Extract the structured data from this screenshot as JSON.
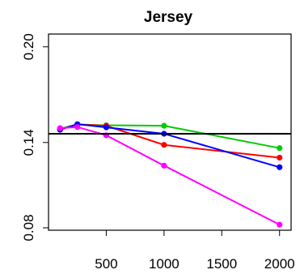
{
  "chart_data": {
    "type": "line",
    "title": "Jersey",
    "xlabel": "",
    "ylabel": "",
    "x": [
      100,
      250,
      500,
      1000,
      2000
    ],
    "xlim": [
      0,
      2100
    ],
    "ylim": [
      0.085,
      0.208
    ],
    "xticks": [
      500,
      1000,
      1500,
      2000
    ],
    "xtick_labels": [
      "500",
      "1000",
      "1500",
      "2000"
    ],
    "yticks": [
      0.08,
      0.14,
      0.2
    ],
    "ytick_labels": [
      "0.08",
      "0.14",
      "0.20"
    ],
    "grid": false,
    "legend": "none",
    "reference_line": {
      "y": 0.1455,
      "color": "#000000"
    },
    "series": [
      {
        "color": "#00CC00",
        "values": [
          0.1487,
          0.1513,
          0.1508,
          0.1505,
          0.1365
        ]
      },
      {
        "color": "#FF0000",
        "values": [
          0.1482,
          0.1513,
          0.1505,
          0.1385,
          0.1305
        ]
      },
      {
        "color": "#0000FF",
        "values": [
          0.148,
          0.1515,
          0.1495,
          0.1455,
          0.1245
        ]
      },
      {
        "color": "#FF00FF",
        "values": [
          0.149,
          0.1497,
          0.1445,
          0.1255,
          0.0885
        ]
      }
    ]
  }
}
